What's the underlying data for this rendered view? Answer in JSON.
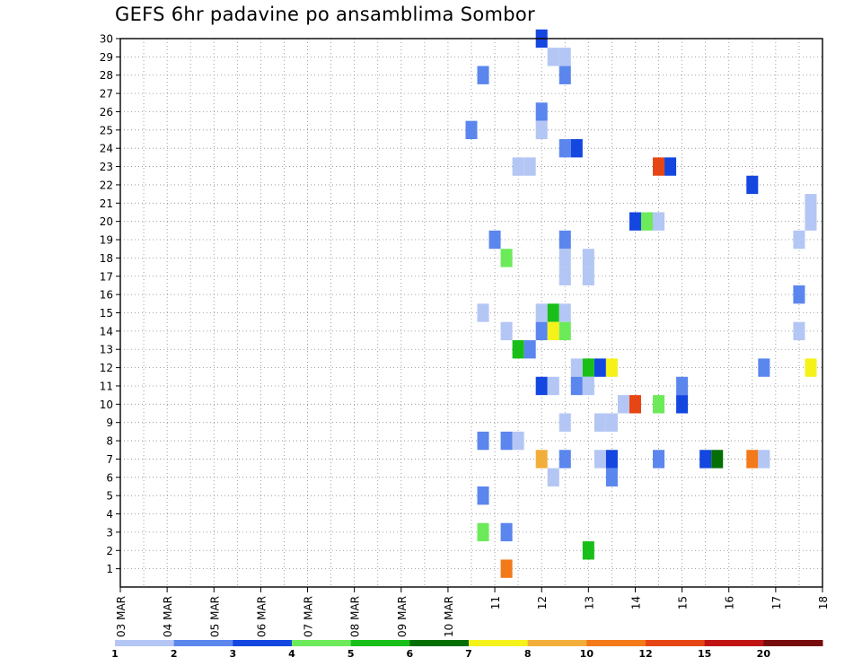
{
  "title": "GEFS 6hr padavine po ansamblima Sombor",
  "chart_data": {
    "type": "heatmap",
    "title": "GEFS 6hr padavine po ansamblima Sombor",
    "x_tick_labels": [
      "03 MAR",
      "04 MAR",
      "05 MAR",
      "06 MAR",
      "07 MAR",
      "08 MAR",
      "09 MAR",
      "10 MAR",
      "11",
      "12",
      "13",
      "14",
      "15",
      "16",
      "17",
      "18"
    ],
    "x_range_days": [
      3,
      18
    ],
    "y_tick_labels": [
      1,
      2,
      3,
      4,
      5,
      6,
      7,
      8,
      9,
      10,
      11,
      12,
      13,
      14,
      15,
      16,
      17,
      18,
      19,
      20,
      21,
      22,
      23,
      24,
      25,
      26,
      27,
      28,
      29,
      30
    ],
    "y_range": [
      0,
      30
    ],
    "grid": true,
    "colorbar": {
      "labels": [
        "1",
        "2",
        "3",
        "4",
        "5",
        "6",
        "7",
        "8",
        "10",
        "12",
        "15",
        "20"
      ],
      "colors": [
        "#b4c6f4",
        "#5b86ee",
        "#1446e0",
        "#6cea5a",
        "#18bf18",
        "#056e05",
        "#f4f21a",
        "#f2ae3a",
        "#f27a1a",
        "#e64614",
        "#c01414",
        "#780c0c"
      ]
    },
    "cells": [
      {
        "member": 30,
        "day": 12.0,
        "value": 3
      },
      {
        "member": 29,
        "day": 12.25,
        "value": 1
      },
      {
        "member": 29,
        "day": 12.5,
        "value": 1
      },
      {
        "member": 28,
        "day": 10.75,
        "value": 2
      },
      {
        "member": 28,
        "day": 12.5,
        "value": 2
      },
      {
        "member": 26,
        "day": 12.0,
        "value": 2
      },
      {
        "member": 25,
        "day": 10.5,
        "value": 2
      },
      {
        "member": 25,
        "day": 12.0,
        "value": 1
      },
      {
        "member": 24,
        "day": 12.5,
        "value": 2
      },
      {
        "member": 24,
        "day": 12.75,
        "value": 3
      },
      {
        "member": 23,
        "day": 11.5,
        "value": 1
      },
      {
        "member": 23,
        "day": 11.75,
        "value": 1
      },
      {
        "member": 23,
        "day": 14.5,
        "value": 12
      },
      {
        "member": 23,
        "day": 14.75,
        "value": 3
      },
      {
        "member": 22,
        "day": 16.5,
        "value": 3
      },
      {
        "member": 21,
        "day": 17.75,
        "value": 1
      },
      {
        "member": 20,
        "day": 14.0,
        "value": 3
      },
      {
        "member": 20,
        "day": 14.25,
        "value": 4
      },
      {
        "member": 20,
        "day": 14.5,
        "value": 1
      },
      {
        "member": 20,
        "day": 17.75,
        "value": 1
      },
      {
        "member": 19,
        "day": 11.0,
        "value": 2
      },
      {
        "member": 19,
        "day": 12.5,
        "value": 2
      },
      {
        "member": 19,
        "day": 17.5,
        "value": 1
      },
      {
        "member": 18,
        "day": 11.25,
        "value": 4
      },
      {
        "member": 18,
        "day": 12.5,
        "value": 1
      },
      {
        "member": 18,
        "day": 13.0,
        "value": 1
      },
      {
        "member": 17,
        "day": 12.5,
        "value": 1
      },
      {
        "member": 17,
        "day": 13.0,
        "value": 1
      },
      {
        "member": 16,
        "day": 17.5,
        "value": 2
      },
      {
        "member": 15,
        "day": 10.75,
        "value": 1
      },
      {
        "member": 15,
        "day": 12.0,
        "value": 1
      },
      {
        "member": 15,
        "day": 12.25,
        "value": 5
      },
      {
        "member": 15,
        "day": 12.5,
        "value": 1
      },
      {
        "member": 14,
        "day": 11.25,
        "value": 1
      },
      {
        "member": 14,
        "day": 12.0,
        "value": 2
      },
      {
        "member": 14,
        "day": 12.25,
        "value": 7
      },
      {
        "member": 14,
        "day": 12.5,
        "value": 4
      },
      {
        "member": 14,
        "day": 17.5,
        "value": 1
      },
      {
        "member": 13,
        "day": 11.5,
        "value": 5
      },
      {
        "member": 13,
        "day": 11.75,
        "value": 2
      },
      {
        "member": 12,
        "day": 12.75,
        "value": 1
      },
      {
        "member": 12,
        "day": 13.0,
        "value": 5
      },
      {
        "member": 12,
        "day": 13.25,
        "value": 3
      },
      {
        "member": 12,
        "day": 13.5,
        "value": 7
      },
      {
        "member": 12,
        "day": 16.75,
        "value": 2
      },
      {
        "member": 12,
        "day": 17.75,
        "value": 7
      },
      {
        "member": 11,
        "day": 12.0,
        "value": 3
      },
      {
        "member": 11,
        "day": 12.25,
        "value": 1
      },
      {
        "member": 11,
        "day": 12.75,
        "value": 2
      },
      {
        "member": 11,
        "day": 13.0,
        "value": 1
      },
      {
        "member": 11,
        "day": 15.0,
        "value": 2
      },
      {
        "member": 10,
        "day": 13.75,
        "value": 1
      },
      {
        "member": 10,
        "day": 14.0,
        "value": 12
      },
      {
        "member": 10,
        "day": 14.5,
        "value": 4
      },
      {
        "member": 10,
        "day": 15.0,
        "value": 3
      },
      {
        "member": 9,
        "day": 12.5,
        "value": 1
      },
      {
        "member": 9,
        "day": 13.25,
        "value": 1
      },
      {
        "member": 9,
        "day": 13.5,
        "value": 1
      },
      {
        "member": 8,
        "day": 10.75,
        "value": 2
      },
      {
        "member": 8,
        "day": 11.25,
        "value": 2
      },
      {
        "member": 8,
        "day": 11.5,
        "value": 1
      },
      {
        "member": 7,
        "day": 12.0,
        "value": 8
      },
      {
        "member": 7,
        "day": 12.5,
        "value": 2
      },
      {
        "member": 7,
        "day": 13.25,
        "value": 1
      },
      {
        "member": 7,
        "day": 13.5,
        "value": 3
      },
      {
        "member": 7,
        "day": 14.5,
        "value": 2
      },
      {
        "member": 7,
        "day": 15.5,
        "value": 3
      },
      {
        "member": 7,
        "day": 15.75,
        "value": 6
      },
      {
        "member": 7,
        "day": 16.5,
        "value": 10
      },
      {
        "member": 7,
        "day": 16.75,
        "value": 1
      },
      {
        "member": 6,
        "day": 12.25,
        "value": 1
      },
      {
        "member": 6,
        "day": 13.5,
        "value": 2
      },
      {
        "member": 5,
        "day": 10.75,
        "value": 2
      },
      {
        "member": 3,
        "day": 10.75,
        "value": 4
      },
      {
        "member": 3,
        "day": 11.25,
        "value": 2
      },
      {
        "member": 2,
        "day": 13.0,
        "value": 5
      },
      {
        "member": 1,
        "day": 11.25,
        "value": 10
      }
    ]
  }
}
